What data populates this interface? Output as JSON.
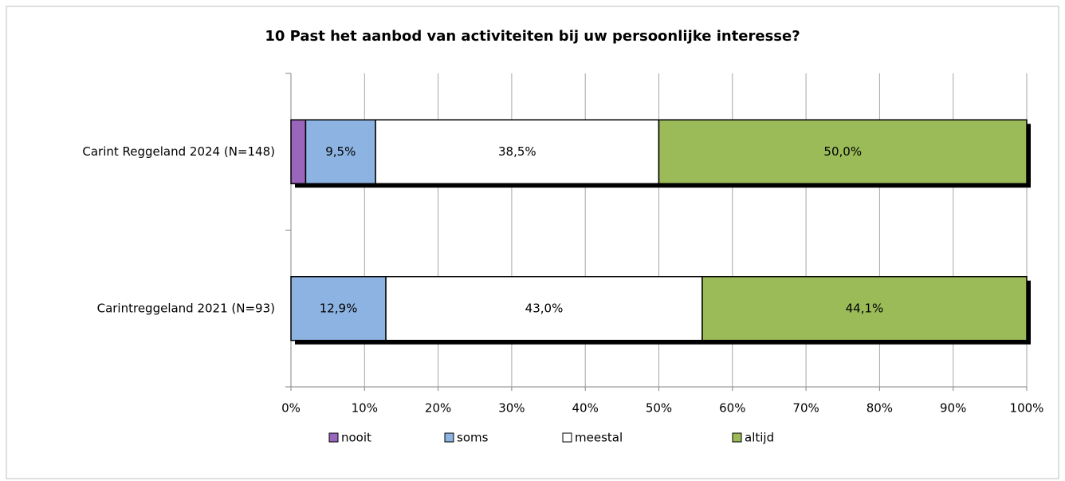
{
  "chart_data": {
    "type": "stacked-bar-horizontal",
    "title": "10 Past het aanbod van activiteiten bij uw persoonlijke interesse?",
    "categories": [
      "Carint Reggeland 2024 (N=148)",
      "Carintreggeland 2021 (N=93)"
    ],
    "series": [
      {
        "name": "nooit",
        "color": "#9966bb",
        "values": [
          2.0,
          0
        ]
      },
      {
        "name": "soms",
        "color": "#8db3e2",
        "values": [
          9.5,
          12.9
        ],
        "value_labels": [
          "9,5%",
          "12,9%"
        ]
      },
      {
        "name": "meestal",
        "color": "#ffffff",
        "values": [
          38.5,
          43.0
        ],
        "value_labels": [
          "38,5%",
          "43,0%"
        ]
      },
      {
        "name": "altijd",
        "color": "#9bbb59",
        "values": [
          50.0,
          44.1
        ],
        "value_labels": [
          "50,0%",
          "44,1%"
        ]
      }
    ],
    "xlim": [
      0,
      100
    ],
    "xticks": [
      {
        "value": 0,
        "label": "0%"
      },
      {
        "value": 10,
        "label": "10%"
      },
      {
        "value": 20,
        "label": "20%"
      },
      {
        "value": 30,
        "label": "30%"
      },
      {
        "value": 40,
        "label": "40%"
      },
      {
        "value": 50,
        "label": "50%"
      },
      {
        "value": 60,
        "label": "60%"
      },
      {
        "value": 70,
        "label": "70%"
      },
      {
        "value": 80,
        "label": "80%"
      },
      {
        "value": 90,
        "label": "90%"
      },
      {
        "value": 100,
        "label": "100%"
      }
    ],
    "grid": true,
    "legend": "bottom"
  }
}
